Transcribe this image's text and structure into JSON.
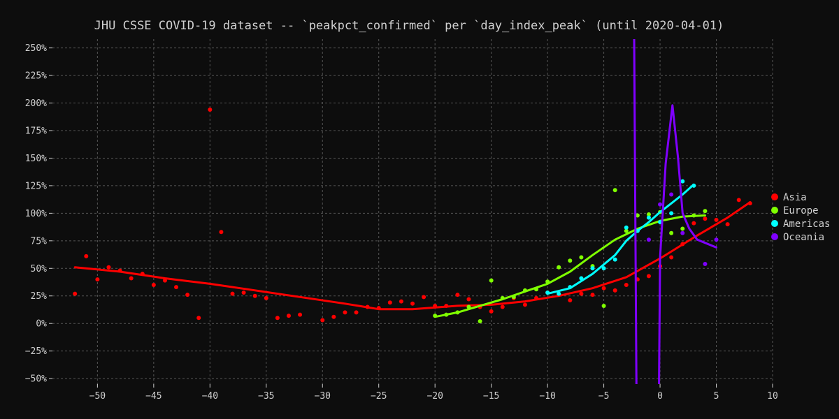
{
  "chart_data": {
    "type": "scatter",
    "title": "JHU CSSE COVID-19 dataset -- `peakpct_confirmed` per `day_index_peak` (until 2020-04-01)",
    "xlabel": "",
    "ylabel": "",
    "xlim": [
      -54,
      10
    ],
    "ylim": [
      -55,
      258
    ],
    "x_ticks": [
      -50,
      -45,
      -40,
      -35,
      -30,
      -25,
      -20,
      -15,
      -10,
      -5,
      0,
      5,
      10
    ],
    "y_ticks": [
      -50,
      -25,
      0,
      25,
      50,
      75,
      100,
      125,
      150,
      175,
      200,
      225,
      250
    ],
    "y_tick_suffix": "%",
    "grid": true,
    "legend_position": "right",
    "colors": {
      "background": "#0d0d0d",
      "text": "#d0d0d0",
      "grid": "#555555"
    },
    "series": [
      {
        "name": "Asia",
        "color": "#ff0000",
        "points": [
          [
            -52,
            27
          ],
          [
            -51,
            61
          ],
          [
            -50,
            40
          ],
          [
            -49,
            51
          ],
          [
            -48,
            48
          ],
          [
            -47,
            41
          ],
          [
            -46,
            45
          ],
          [
            -45,
            35
          ],
          [
            -44,
            39
          ],
          [
            -43,
            33
          ],
          [
            -42,
            26
          ],
          [
            -41,
            5
          ],
          [
            -40,
            194
          ],
          [
            -39,
            83
          ],
          [
            -38,
            27
          ],
          [
            -37,
            28
          ],
          [
            -36,
            25
          ],
          [
            -35,
            23
          ],
          [
            -34,
            5
          ],
          [
            -33,
            7
          ],
          [
            -32,
            8
          ],
          [
            -30,
            3
          ],
          [
            -29,
            6
          ],
          [
            -28,
            10
          ],
          [
            -27,
            10
          ],
          [
            -26,
            15
          ],
          [
            -25,
            14
          ],
          [
            -24,
            19
          ],
          [
            -23,
            20
          ],
          [
            -22,
            18
          ],
          [
            -21,
            24
          ],
          [
            -20,
            16
          ],
          [
            -19,
            16
          ],
          [
            -18,
            26
          ],
          [
            -17,
            22
          ],
          [
            -16,
            15
          ],
          [
            -15,
            11
          ],
          [
            -14,
            15
          ],
          [
            -13,
            23
          ],
          [
            -12,
            17
          ],
          [
            -11,
            23
          ],
          [
            -10,
            28
          ],
          [
            -9,
            26
          ],
          [
            -8,
            21
          ],
          [
            -7,
            27
          ],
          [
            -6,
            26
          ],
          [
            -5,
            32
          ],
          [
            -4,
            30
          ],
          [
            -3,
            35
          ],
          [
            -2,
            40
          ],
          [
            -1,
            43
          ],
          [
            0,
            52
          ],
          [
            1,
            60
          ],
          [
            2,
            72
          ],
          [
            3,
            91
          ],
          [
            4,
            95
          ],
          [
            5,
            94
          ],
          [
            6,
            90
          ],
          [
            7,
            112
          ],
          [
            8,
            109
          ]
        ],
        "trend": [
          [
            -52,
            51
          ],
          [
            -48,
            47
          ],
          [
            -44,
            41
          ],
          [
            -40,
            36
          ],
          [
            -36,
            30
          ],
          [
            -32,
            24
          ],
          [
            -28,
            18
          ],
          [
            -25,
            13
          ],
          [
            -22,
            13
          ],
          [
            -18,
            16
          ],
          [
            -15,
            17
          ],
          [
            -12,
            20
          ],
          [
            -9,
            25
          ],
          [
            -6,
            32
          ],
          [
            -3,
            42
          ],
          [
            0,
            59
          ],
          [
            3,
            78
          ],
          [
            6,
            96
          ],
          [
            8,
            110
          ]
        ]
      },
      {
        "name": "Europe",
        "color": "#7fff00",
        "points": [
          [
            -20,
            7
          ],
          [
            -19,
            8
          ],
          [
            -18,
            10
          ],
          [
            -17,
            15
          ],
          [
            -16,
            2
          ],
          [
            -15,
            39
          ],
          [
            -14,
            23
          ],
          [
            -13,
            24
          ],
          [
            -12,
            30
          ],
          [
            -11,
            31
          ],
          [
            -10,
            38
          ],
          [
            -9,
            51
          ],
          [
            -8,
            57
          ],
          [
            -7,
            60
          ],
          [
            -6,
            52
          ],
          [
            -5,
            16
          ],
          [
            -4,
            121
          ],
          [
            -3,
            84
          ],
          [
            -2,
            98
          ],
          [
            -1,
            99
          ],
          [
            0,
            101
          ],
          [
            1,
            82
          ],
          [
            2,
            86
          ],
          [
            3,
            98
          ],
          [
            4,
            102
          ]
        ],
        "trend": [
          [
            -20,
            6
          ],
          [
            -18,
            10
          ],
          [
            -16,
            16
          ],
          [
            -14,
            22
          ],
          [
            -12,
            29
          ],
          [
            -10,
            36
          ],
          [
            -8,
            47
          ],
          [
            -6,
            62
          ],
          [
            -4,
            76
          ],
          [
            -2,
            86
          ],
          [
            0,
            93
          ],
          [
            2,
            97
          ],
          [
            4,
            98
          ]
        ]
      },
      {
        "name": "Americas",
        "color": "#00ffff",
        "points": [
          [
            -10,
            28
          ],
          [
            -9,
            27
          ],
          [
            -8,
            33
          ],
          [
            -7,
            41
          ],
          [
            -6,
            50
          ],
          [
            -5,
            50
          ],
          [
            -4,
            58
          ],
          [
            -3,
            87
          ],
          [
            -2,
            84
          ],
          [
            -1,
            96
          ],
          [
            0,
            92
          ],
          [
            1,
            100
          ],
          [
            2,
            129
          ],
          [
            3,
            125
          ]
        ],
        "trend": [
          [
            -10,
            27
          ],
          [
            -8,
            32
          ],
          [
            -6,
            45
          ],
          [
            -4,
            62
          ],
          [
            -3,
            75
          ],
          [
            -2,
            84
          ],
          [
            -1,
            92
          ],
          [
            0,
            101
          ],
          [
            1,
            109
          ],
          [
            2,
            117
          ],
          [
            3,
            126
          ]
        ]
      },
      {
        "name": "Oceania",
        "color": "#7f00ff",
        "points": [
          [
            -1,
            76
          ],
          [
            0,
            108
          ],
          [
            1,
            117
          ],
          [
            2,
            82
          ],
          [
            4,
            54
          ],
          [
            5,
            76
          ]
        ],
        "trend": [
          [
            -2.3,
            262
          ],
          [
            -2.1,
            -60
          ],
          [
            -0.1,
            -60
          ],
          [
            0,
            60
          ],
          [
            0.5,
            145
          ],
          [
            1.1,
            198
          ],
          [
            1.6,
            150
          ],
          [
            2,
            100
          ],
          [
            2.6,
            86
          ],
          [
            3.3,
            76
          ],
          [
            5,
            69
          ]
        ]
      }
    ]
  }
}
